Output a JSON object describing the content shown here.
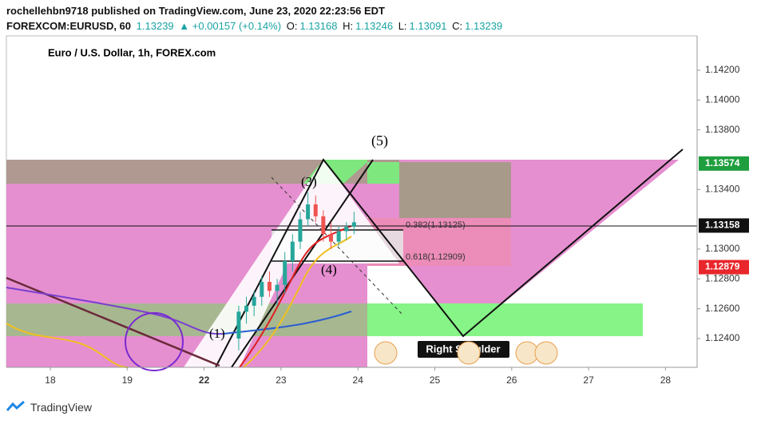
{
  "header": {
    "publisher": "rochellehbn9718 published on TradingView.com, June 23, 2020 22:23:56 EDT",
    "symbol": "FOREXCOM:EURUSD, 60",
    "last": "1.13239",
    "change": "▲ +0.00157 (+0.14%)",
    "o_label": "O:",
    "o": "1.13168",
    "h_label": "H:",
    "h": "1.13246",
    "l_label": "L:",
    "l": "1.13091",
    "c_label": "C:",
    "c": "1.13239"
  },
  "footer": {
    "brand": "TradingView"
  },
  "chart_data": {
    "type": "candlestick",
    "title": "Euro / U.S. Dollar, 1h, FOREX.com",
    "up_color": "#26a69a",
    "down_color": "#ef5350",
    "xlim": [
      -0.571,
      8.411
    ],
    "xticks": [
      {
        "value": 0,
        "label": "18"
      },
      {
        "value": 1,
        "label": "19"
      },
      {
        "value": 2,
        "label": "22"
      },
      {
        "value": 3,
        "label": "23"
      },
      {
        "value": 4,
        "label": "24"
      },
      {
        "value": 5,
        "label": "25"
      },
      {
        "value": 6,
        "label": "26"
      },
      {
        "value": 7,
        "label": "27"
      },
      {
        "value": 8,
        "label": "28"
      }
    ],
    "ylim": [
      1.12207,
      1.1443
    ],
    "yticks": [
      {
        "value": 1.142,
        "label": "1.14200"
      },
      {
        "value": 1.14,
        "label": "1.14000"
      },
      {
        "value": 1.138,
        "label": "1.13800"
      },
      {
        "value": 1.134,
        "label": "1.13400"
      },
      {
        "value": 1.13,
        "label": "1.13000"
      },
      {
        "value": 1.128,
        "label": "1.12800"
      },
      {
        "value": 1.126,
        "label": "1.12600"
      },
      {
        "value": 1.124,
        "label": "1.12400"
      }
    ],
    "price_labels": [
      {
        "value": 1.13574,
        "label": "1.13574",
        "color": "#1e9e3e"
      },
      {
        "value": 1.13158,
        "label": "1.13158",
        "color": "#111111"
      },
      {
        "value": 1.12879,
        "label": "1.12879",
        "color": "#e8262b"
      }
    ],
    "candles": [
      {
        "x": 2.45,
        "open": 1.124,
        "high": 1.1262,
        "low": 1.1232,
        "close": 1.1258
      },
      {
        "x": 2.55,
        "open": 1.1258,
        "high": 1.1268,
        "low": 1.125,
        "close": 1.1262
      },
      {
        "x": 2.65,
        "open": 1.1262,
        "high": 1.1272,
        "low": 1.1255,
        "close": 1.1268
      },
      {
        "x": 2.75,
        "open": 1.1268,
        "high": 1.1282,
        "low": 1.1262,
        "close": 1.1278
      },
      {
        "x": 2.85,
        "open": 1.1278,
        "high": 1.1285,
        "low": 1.1268,
        "close": 1.1272
      },
      {
        "x": 2.95,
        "open": 1.1272,
        "high": 1.128,
        "low": 1.1262,
        "close": 1.1276
      },
      {
        "x": 3.05,
        "open": 1.1276,
        "high": 1.1298,
        "low": 1.127,
        "close": 1.1292
      },
      {
        "x": 3.15,
        "open": 1.1292,
        "high": 1.131,
        "low": 1.1285,
        "close": 1.1305
      },
      {
        "x": 3.25,
        "open": 1.1305,
        "high": 1.1325,
        "low": 1.13,
        "close": 1.132
      },
      {
        "x": 3.35,
        "open": 1.132,
        "high": 1.1338,
        "low": 1.1315,
        "close": 1.133
      },
      {
        "x": 3.45,
        "open": 1.133,
        "high": 1.1336,
        "low": 1.1318,
        "close": 1.1322
      },
      {
        "x": 3.55,
        "open": 1.1322,
        "high": 1.1326,
        "low": 1.1305,
        "close": 1.131
      },
      {
        "x": 3.65,
        "open": 1.131,
        "high": 1.1318,
        "low": 1.13,
        "close": 1.1305
      },
      {
        "x": 3.75,
        "open": 1.1305,
        "high": 1.1315,
        "low": 1.1302,
        "close": 1.1312
      },
      {
        "x": 3.85,
        "open": 1.1312,
        "high": 1.1318,
        "low": 1.1306,
        "close": 1.1315
      },
      {
        "x": 3.95,
        "open": 1.1315,
        "high": 1.1325,
        "low": 1.131,
        "close": 1.1318
      }
    ],
    "annotations": {
      "w5": "(5)",
      "w3": "(3)",
      "w4": "(4)",
      "w1": "(1)",
      "fib382": "0.382(1.13125)",
      "fib618": "0.618(1.12909)",
      "shoulder": "Right Shoulder"
    }
  }
}
